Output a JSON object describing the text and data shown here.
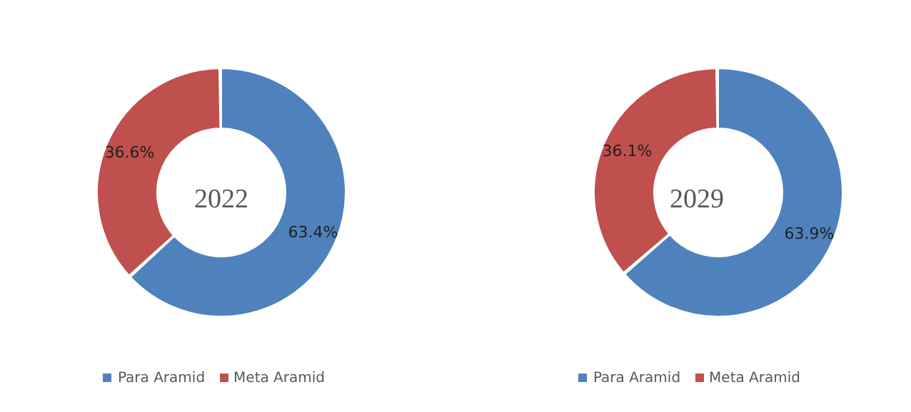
{
  "chart_data": [
    {
      "type": "donut",
      "title": "2022",
      "categories": [
        "Para Aramid",
        "Meta Aramid"
      ],
      "values": [
        63.4,
        36.6
      ],
      "value_labels": [
        "63.4%",
        "36.6%"
      ],
      "colors": [
        "#4f81bd",
        "#c0504d"
      ],
      "legend": "bottom"
    },
    {
      "type": "donut",
      "title": "2029",
      "categories": [
        "Para Aramid",
        "Meta Aramid"
      ],
      "values": [
        63.9,
        36.1
      ],
      "value_labels": [
        "63.9%",
        "36.1%"
      ],
      "colors": [
        "#4f81bd",
        "#c0504d"
      ],
      "legend": "bottom"
    }
  ]
}
